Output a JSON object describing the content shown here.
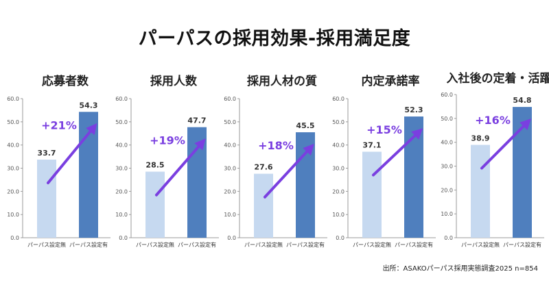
{
  "title": "パーパスの採用効果-採用満足度",
  "source": "出所：ASAKOパーパス採用実態調査2025 n=854",
  "colors": {
    "light": "#c6d9f0",
    "dark": "#4f7fbe",
    "arrow": "#7a3fe0",
    "axis": "#999999",
    "text": "#333333"
  },
  "chart_data": [
    {
      "type": "bar",
      "title": "応募者数",
      "categories": [
        "パーパス設定無",
        "パーパス設定有"
      ],
      "values": [
        33.7,
        54.3
      ],
      "annotation": "+21%",
      "yticks": [
        "0.0",
        "10.0",
        "20.0",
        "30.0",
        "40.0",
        "50.0",
        "60.0"
      ],
      "ylim": [
        0,
        60
      ]
    },
    {
      "type": "bar",
      "title": "採用人数",
      "categories": [
        "パーパス設定無",
        "パーパス設定有"
      ],
      "values": [
        28.5,
        47.7
      ],
      "annotation": "+19%",
      "yticks": [
        "0.0",
        "10.0",
        "20.0",
        "30.0",
        "40.0",
        "50.0",
        "60.0"
      ],
      "ylim": [
        0,
        60
      ]
    },
    {
      "type": "bar",
      "title": "採用人材の質",
      "categories": [
        "パーパス設定無",
        "パーパス設定有"
      ],
      "values": [
        27.6,
        45.5
      ],
      "annotation": "+18%",
      "yticks": [
        "0.0",
        "10.0",
        "20.0",
        "30.0",
        "40.0",
        "50.0",
        "60.0"
      ],
      "ylim": [
        0,
        60
      ]
    },
    {
      "type": "bar",
      "title": "内定承諾率",
      "categories": [
        "パーパス設定無",
        "パーパス設定有"
      ],
      "values": [
        37.1,
        52.3
      ],
      "annotation": "+15%",
      "yticks": [
        "0.0",
        "10.0",
        "20.0",
        "30.0",
        "40.0",
        "50.0",
        "60.0"
      ],
      "ylim": [
        0,
        60
      ]
    },
    {
      "type": "bar",
      "title": "入社後の定着・活躍",
      "categories": [
        "パーパス設定無",
        "パーパス設定有"
      ],
      "values": [
        38.9,
        54.8
      ],
      "annotation": "+16%",
      "yticks": [
        "0.0",
        "10.0",
        "20.0",
        "30.0",
        "40.0",
        "50.0",
        "60.0"
      ],
      "ylim": [
        0,
        60
      ]
    }
  ]
}
